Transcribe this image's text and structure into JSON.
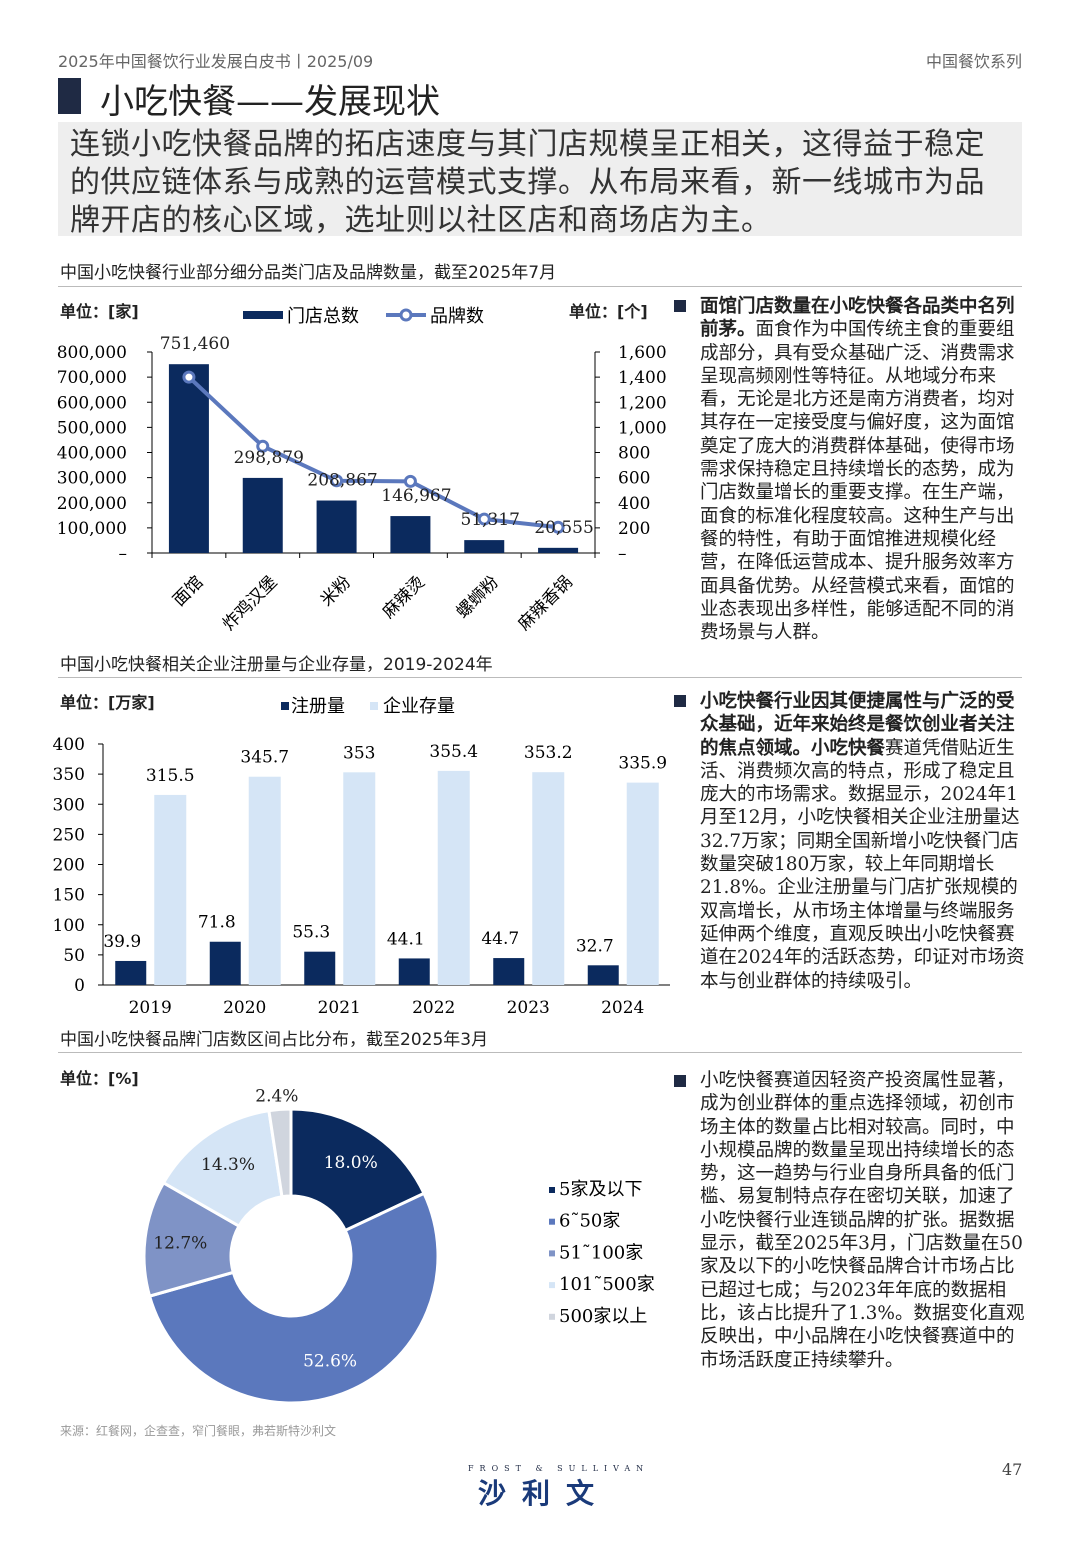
{
  "header": {
    "left": "2025年中国餐饮行业发展白皮书丨2025/09",
    "right": "中国餐饮系列"
  },
  "title": "小吃快餐——发展现状",
  "summary": "连锁小吃快餐品牌的拓店速度与其门店规模呈正相关，这得益于稳定的供应链体系与成熟的运营模式支撑。从布局来看，新一线城市为品牌开店的核心区域，选址则以社区店和商场店为主。",
  "colors": {
    "navy": "#0b2a5e",
    "mid_blue": "#5b78bd",
    "gray_blue": "#7f93c6",
    "light_blue": "#d5e5f6",
    "gray": "#d0d5de"
  },
  "sections": [
    {
      "title": "中国小吃快餐行业部分细分品类门店及品牌数量，截至2025年7月",
      "text_bold": "面馆门店数量在小吃快餐各品类中名列前茅。",
      "text": "面食作为中国传统主食的重要组成部分，具有受众基础广泛、消费需求呈现高频刚性等特征。从地域分布来看，无论是北方还是南方消费者，均对其存在一定接受度与偏好度，这为面馆奠定了庞大的消费群体基础，使得市场需求保持稳定且持续增长的态势，成为门店数量增长的重要支撑。在生产端，面食的标准化程度较高。这种生产与出餐的特性，有助于面馆推进规模化经营，在降低运营成本、提升服务效率方面具备优势。从经营模式来看，面馆的业态表现出多样性，能够适配不同的消费场景与人群。"
    },
    {
      "title": "中国小吃快餐相关企业注册量与企业存量，2019-2024年",
      "text_bold": "小吃快餐行业因其便捷属性与广泛的受众基础，近年来始终是餐饮创业者关注的焦点领域。小吃快餐",
      "text": "赛道凭借贴近生活、消费频次高的特点，形成了稳定且庞大的市场需求。数据显示，2024年1月至12月，小吃快餐相关企业注册量达32.7万家；同期全国新增小吃快餐门店数量突破180万家，较上年同期增长21.8%。企业注册量与门店扩张规模的双高增长，从市场主体增量与终端服务延伸两个维度，直观反映出小吃快餐赛道在2024年的活跃态势，印证对市场资本与创业群体的持续吸引。"
    },
    {
      "title": "中国小吃快餐品牌门店数区间占比分布，截至2025年3月",
      "text_bold": "",
      "text": "小吃快餐赛道因轻资产投资属性显著，成为创业群体的重点选择领域，初创市场主体的数量占比相对较高。同时，中小规模品牌的数量呈现出持续增长的态势，这一趋势与行业自身所具备的低门槛、易复制特点存在密切关联，加速了小吃快餐行业连锁品牌的扩张。据数据显示，截至2025年3月，门店数量在50家及以下的小吃快餐品牌合计市场占比已超过七成；与2023年年底的数据相比，该占比提升了1.3%。数据变化直观反映出，中小品牌在小吃快餐赛道中的市场活跃度正持续攀升。"
    }
  ],
  "chart_data": [
    {
      "type": "bar+line",
      "unit_left": "单位：[家]",
      "unit_right": "单位：[个]",
      "categories": [
        "面馆",
        "炸鸡汉堡",
        "米粉",
        "麻辣烫",
        "螺蛳粉",
        "麻辣香锅"
      ],
      "series": [
        {
          "name": "门店总数",
          "type": "bar",
          "axis": "left",
          "values": [
            751460,
            298879,
            208867,
            146967,
            51317,
            20555
          ],
          "labels": [
            "751,460",
            "298,879",
            "208,867",
            "146,967",
            "51,317",
            "20,555"
          ]
        },
        {
          "name": "品牌数",
          "type": "line",
          "axis": "right",
          "values": [
            1400,
            850,
            575,
            570,
            270,
            205
          ]
        }
      ],
      "ylim_left": [
        0,
        800000
      ],
      "ylim_right": [
        0,
        1600
      ],
      "yticks_left": [
        "–",
        "100,000",
        "200,000",
        "300,000",
        "400,000",
        "500,000",
        "600,000",
        "700,000",
        "800,000"
      ],
      "yticks_right": [
        "–",
        "200",
        "400",
        "600",
        "800",
        "1,000",
        "1,200",
        "1,400",
        "1,600"
      ],
      "legend": "top"
    },
    {
      "type": "bar",
      "unit": "单位：[万家]",
      "categories": [
        "2019",
        "2020",
        "2021",
        "2022",
        "2023",
        "2024"
      ],
      "series": [
        {
          "name": "注册量",
          "values": [
            39.9,
            71.8,
            55.3,
            44.1,
            44.7,
            32.7
          ],
          "labels": [
            "39.9",
            "71.8",
            "55.3",
            "44.1",
            "44.7",
            "32.7"
          ]
        },
        {
          "name": "企业存量",
          "values": [
            315.5,
            345.7,
            353,
            355.4,
            353.2,
            335.9
          ],
          "labels": [
            "315.5",
            "345.7",
            "353",
            "355.4",
            "353.2",
            "335.9"
          ]
        }
      ],
      "ylim": [
        0,
        400
      ],
      "yticks": [
        "0",
        "50",
        "100",
        "150",
        "200",
        "250",
        "300",
        "350",
        "400"
      ],
      "legend": "top"
    },
    {
      "type": "pie",
      "unit": "单位：[%]",
      "categories": [
        "5家及以下",
        "6~50家",
        "51~100家",
        "101~500家",
        "500家以上"
      ],
      "legend_labels": [
        "5家及以下",
        "6˜50家",
        "51˜100家",
        "101˜500家",
        "500家以上"
      ],
      "values": [
        18.0,
        52.6,
        12.7,
        14.3,
        2.4
      ],
      "labels": [
        "18.0%",
        "52.6%",
        "12.7%",
        "14.3%",
        "2.4%"
      ],
      "legend": "right"
    }
  ],
  "source": "来源：红餐网，企查查，窄门餐眼，弗若斯特沙利文",
  "logo": {
    "en": "FROST & SULLIVAN",
    "cn": "沙利文"
  },
  "page_number": "47"
}
